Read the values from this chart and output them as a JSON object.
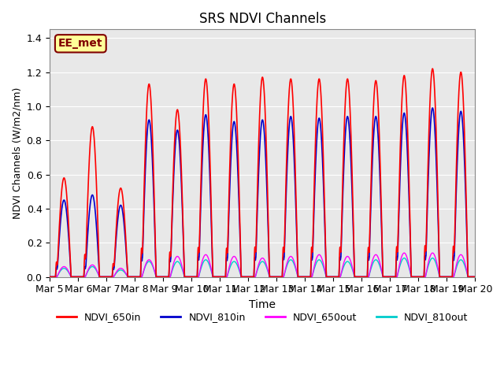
{
  "title": "SRS NDVI Channels",
  "xlabel": "Time",
  "ylabel": "NDVI Channels (W/m2/nm)",
  "ylim": [
    0,
    1.45
  ],
  "color_650in": "#FF0000",
  "color_810in": "#0000CC",
  "color_650out": "#FF00FF",
  "color_810out": "#00CCCC",
  "bg_color": "#E8E8E8",
  "annotation_text": "EE_met",
  "annotation_bg": "#FFFF99",
  "annotation_border": "#800000",
  "x_tick_labels": [
    "Mar 5",
    "Mar 6",
    "Mar 7",
    "Mar 8",
    "Mar 9",
    "Mar 10",
    "Mar 11",
    "Mar 12",
    "Mar 13",
    "Mar 14",
    "Mar 15",
    "Mar 16",
    "Mar 17",
    "Mar 18",
    "Mar 19",
    "Mar 20"
  ],
  "num_days": 15,
  "samples_per_day": 144,
  "peak_650in": [
    0.58,
    0.88,
    0.52,
    1.13,
    0.98,
    1.16,
    1.13,
    1.17,
    1.16,
    1.16,
    1.16,
    1.15,
    1.18,
    1.22,
    1.2
  ],
  "peak_810in": [
    0.45,
    0.48,
    0.42,
    0.92,
    0.86,
    0.95,
    0.91,
    0.92,
    0.94,
    0.93,
    0.94,
    0.94,
    0.96,
    0.99,
    0.97
  ],
  "peak_650out": [
    0.06,
    0.07,
    0.05,
    0.1,
    0.12,
    0.13,
    0.12,
    0.11,
    0.12,
    0.13,
    0.12,
    0.13,
    0.14,
    0.14,
    0.13
  ],
  "peak_810out": [
    0.05,
    0.06,
    0.04,
    0.09,
    0.09,
    0.1,
    0.09,
    0.09,
    0.1,
    0.1,
    0.09,
    0.1,
    0.11,
    0.11,
    0.1
  ],
  "lw_in": 1.2,
  "lw_out": 1.0
}
